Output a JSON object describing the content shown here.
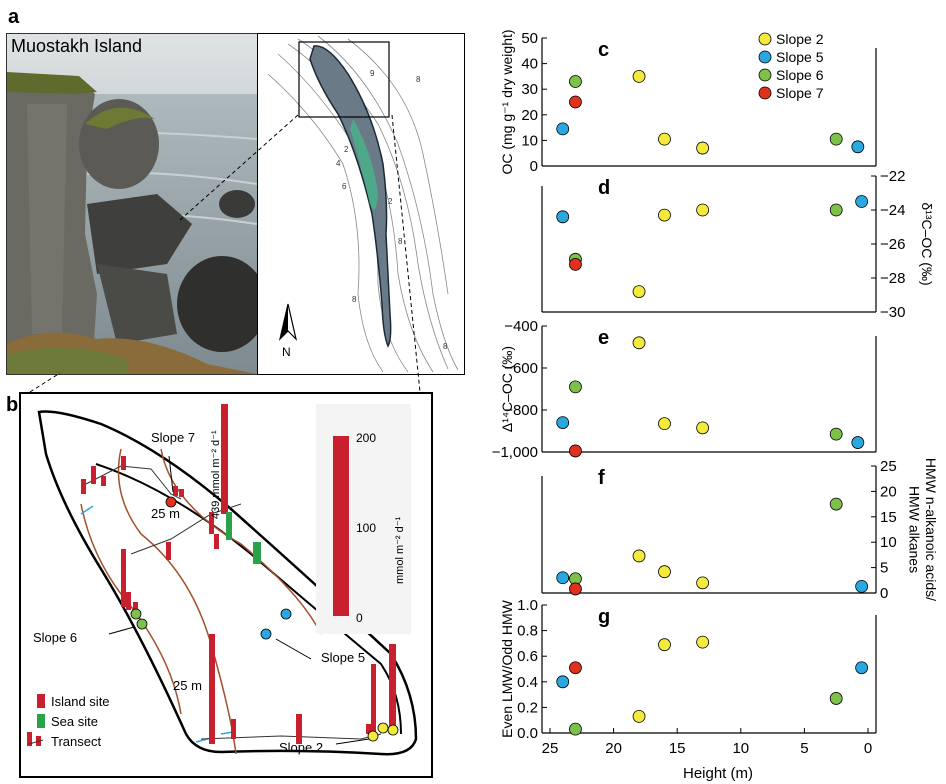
{
  "panel_letters": {
    "a": "a",
    "b": "b",
    "c": "c",
    "d": "d",
    "e": "e",
    "f": "f",
    "g": "g"
  },
  "photo": {
    "title": "Muostakh Island"
  },
  "contour_map": {
    "north_label": "N",
    "contour_labels": [
      "9",
      "8",
      "2",
      "4",
      "6",
      "2",
      "8",
      "8",
      "8"
    ]
  },
  "site_map": {
    "labels": {
      "slope7": "Slope 7",
      "slope6": "Slope 6",
      "slope5": "Slope 5",
      "slope2": "Slope 2",
      "contour1": "25 m",
      "contour2": "25 m",
      "bar_value": "439 mmol m⁻² d⁻¹"
    },
    "scale": {
      "ticks": [
        "200",
        "100",
        "0"
      ],
      "unit": "mmol m⁻² d⁻¹"
    },
    "legend": [
      {
        "label": "Island site",
        "color": "#c8202f"
      },
      {
        "label": "Sea site",
        "color": "#2aa24a"
      },
      {
        "label": "Transect",
        "color": "#c8202f"
      }
    ]
  },
  "legend": [
    {
      "name": "Slope 2",
      "color": "#f4ea3c"
    },
    {
      "name": "Slope 5",
      "color": "#2aa7e0"
    },
    {
      "name": "Slope 6",
      "color": "#7dc04a"
    },
    {
      "name": "Slope 7",
      "color": "#e0301e"
    }
  ],
  "x_axis": {
    "label": "Height (m)",
    "ticks": [
      "25",
      "20",
      "15",
      "10",
      "5",
      "0"
    ]
  },
  "chart_data": [
    {
      "type": "scatter",
      "panel": "c",
      "ylabel": "OC (mg g⁻¹ dry weight)",
      "ylim": [
        0,
        50
      ],
      "yticks": [
        "0",
        "10",
        "20",
        "30",
        "40",
        "50"
      ],
      "y_axis_side": "left",
      "points": [
        {
          "series": "Slope 2",
          "x": 18,
          "y": 35
        },
        {
          "series": "Slope 2",
          "x": 16,
          "y": 10.5
        },
        {
          "series": "Slope 2",
          "x": 13,
          "y": 7
        },
        {
          "series": "Slope 5",
          "x": 24,
          "y": 14.5
        },
        {
          "series": "Slope 5",
          "x": 0.8,
          "y": 7.5
        },
        {
          "series": "Slope 6",
          "x": 23,
          "y": 33
        },
        {
          "series": "Slope 6",
          "x": 2.5,
          "y": 10.5
        },
        {
          "series": "Slope 7",
          "x": 23,
          "y": 25
        }
      ]
    },
    {
      "type": "scatter",
      "panel": "d",
      "ylabel": "δ¹³C–OC (‰)",
      "ylim": [
        -30,
        -22
      ],
      "yticks": [
        "−22",
        "−24",
        "−26",
        "−28",
        "−30"
      ],
      "y_axis_side": "right",
      "points": [
        {
          "series": "Slope 2",
          "x": 18,
          "y": -28.8
        },
        {
          "series": "Slope 2",
          "x": 16,
          "y": -24.3
        },
        {
          "series": "Slope 2",
          "x": 13,
          "y": -24
        },
        {
          "series": "Slope 5",
          "x": 24,
          "y": -24.4
        },
        {
          "series": "Slope 5",
          "x": 0.5,
          "y": -23.5
        },
        {
          "series": "Slope 6",
          "x": 23,
          "y": -26.9
        },
        {
          "series": "Slope 6",
          "x": 2.5,
          "y": -24
        },
        {
          "series": "Slope 7",
          "x": 23,
          "y": -27.2
        }
      ]
    },
    {
      "type": "scatter",
      "panel": "e",
      "ylabel": "Δ¹⁴C–OC (‰)",
      "ylim": [
        -1000,
        -400
      ],
      "yticks": [
        "−400",
        "−600",
        "−800",
        "−1,000"
      ],
      "y_axis_side": "left",
      "points": [
        {
          "series": "Slope 2",
          "x": 18,
          "y": -480
        },
        {
          "series": "Slope 2",
          "x": 16,
          "y": -865
        },
        {
          "series": "Slope 2",
          "x": 13,
          "y": -885
        },
        {
          "series": "Slope 5",
          "x": 24,
          "y": -860
        },
        {
          "series": "Slope 5",
          "x": 0.8,
          "y": -955
        },
        {
          "series": "Slope 6",
          "x": 23,
          "y": -690
        },
        {
          "series": "Slope 6",
          "x": 2.5,
          "y": -915
        },
        {
          "series": "Slope 7",
          "x": 23,
          "y": -995
        }
      ]
    },
    {
      "type": "scatter",
      "panel": "f",
      "ylabel": "HMW n-alkanoic acids/ HMW alkanes",
      "ylim": [
        0,
        25
      ],
      "yticks": [
        "0",
        "5",
        "10",
        "15",
        "20",
        "25"
      ],
      "y_axis_side": "right",
      "points": [
        {
          "series": "Slope 2",
          "x": 18,
          "y": 7.3
        },
        {
          "series": "Slope 2",
          "x": 16,
          "y": 4.2
        },
        {
          "series": "Slope 2",
          "x": 13,
          "y": 2
        },
        {
          "series": "Slope 5",
          "x": 24,
          "y": 3
        },
        {
          "series": "Slope 5",
          "x": 0.5,
          "y": 1.3
        },
        {
          "series": "Slope 6",
          "x": 23,
          "y": 2.8
        },
        {
          "series": "Slope 6",
          "x": 2.5,
          "y": 17.5
        },
        {
          "series": "Slope 7",
          "x": 23,
          "y": 0.8
        }
      ]
    },
    {
      "type": "scatter",
      "panel": "g",
      "ylabel": "Even LMW/Odd HMW",
      "ylim": [
        0,
        1
      ],
      "yticks": [
        "0.0",
        "0.2",
        "0.4",
        "0.6",
        "0.8",
        "1.0"
      ],
      "y_axis_side": "left",
      "points": [
        {
          "series": "Slope 2",
          "x": 18,
          "y": 0.13
        },
        {
          "series": "Slope 2",
          "x": 16,
          "y": 0.69
        },
        {
          "series": "Slope 2",
          "x": 13,
          "y": 0.71
        },
        {
          "series": "Slope 5",
          "x": 24,
          "y": 0.4
        },
        {
          "series": "Slope 5",
          "x": 0.5,
          "y": 0.51
        },
        {
          "series": "Slope 6",
          "x": 23,
          "y": 0.03
        },
        {
          "series": "Slope 6",
          "x": 2.5,
          "y": 0.27
        },
        {
          "series": "Slope 7",
          "x": 23,
          "y": 0.51
        }
      ]
    }
  ]
}
